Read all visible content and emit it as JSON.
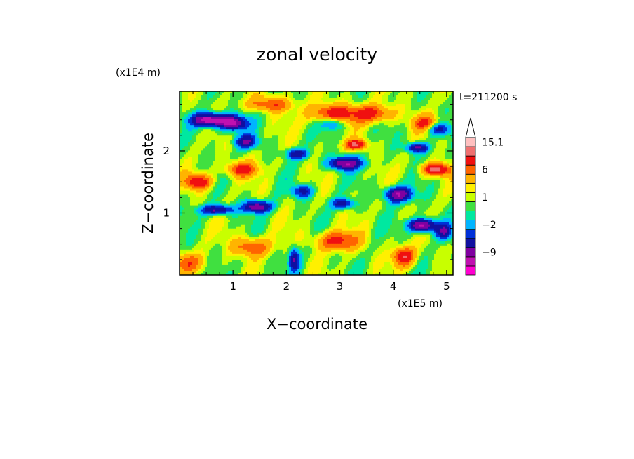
{
  "chart_data": {
    "type": "heatmap",
    "title": "zonal velocity",
    "xlabel": "X−coordinate",
    "ylabel": "Z−coordinate",
    "x_scale_label": "(x1E5 m)",
    "y_scale_label": "(x1E4 m)",
    "timestamp": "t=211200 s",
    "xlim": [
      0,
      5.12
    ],
    "ylim": [
      0,
      2.96
    ],
    "x_ticks": [
      1,
      2,
      3,
      4,
      5
    ],
    "y_ticks": [
      1,
      2
    ],
    "x_tick_labels": [
      "1",
      "2",
      "3",
      "4",
      "5"
    ],
    "y_tick_labels": [
      "1",
      "2"
    ],
    "colorbar": {
      "levels": [
        -15,
        -12,
        -9,
        -6,
        -4,
        -2,
        -1,
        0,
        1,
        2,
        4,
        6,
        9,
        12,
        15.1
      ],
      "colors": [
        "#ff00d0",
        "#c010b0",
        "#8000a0",
        "#1010a0",
        "#0030d8",
        "#00b4ff",
        "#00e8a0",
        "#40e040",
        "#c8ff00",
        "#fff000",
        "#ffb400",
        "#ff6400",
        "#f01010",
        "#f07070",
        "#ffc0c0"
      ],
      "extend_top_color": "#ffffff",
      "labels": [
        {
          "text": "15.1",
          "value": 15.1
        },
        {
          "text": "6",
          "value": 6
        },
        {
          "text": "1",
          "value": 1
        },
        {
          "text": "−2",
          "value": -2
        },
        {
          "text": "−9",
          "value": -9
        }
      ]
    }
  }
}
